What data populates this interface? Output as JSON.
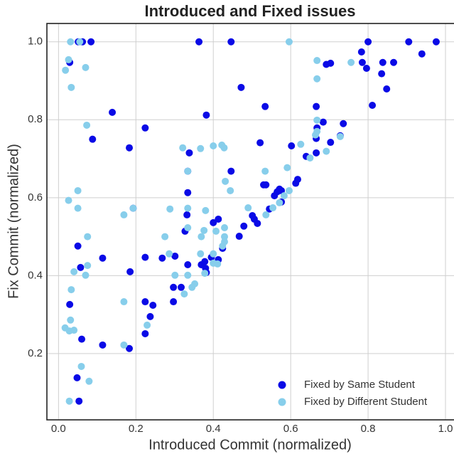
{
  "chart_data": {
    "type": "scatter",
    "title": "Introduced and Fixed issues",
    "xlabel": "Introduced Commit (normalized)",
    "ylabel": "Fix Commit (normalized)",
    "xlim": [
      -0.03,
      1.022
    ],
    "ylim": [
      0.03,
      1.047
    ],
    "xticks": [
      {
        "value": 0,
        "label": "0.0"
      },
      0.2,
      0.4,
      0.6,
      0.8,
      {
        "value": 1,
        "label": "1.0"
      }
    ],
    "yticks": [
      0.2,
      0.4,
      0.6,
      0.8,
      {
        "value": 1,
        "label": "1.0"
      }
    ],
    "grid": true,
    "legend": "lower right",
    "series": [
      {
        "name": "Fixed by Same Student",
        "color": "#0a0ae6",
        "x": [
          0.029,
          0.051,
          0.062,
          0.084,
          0.363,
          0.446,
          0.8,
          0.905,
          0.976,
          0.783,
          0.939,
          0.703,
          0.692,
          0.785,
          0.796,
          0.838,
          0.866,
          0.835,
          0.848,
          0.472,
          0.382,
          0.534,
          0.139,
          0.666,
          0.811,
          0.224,
          0.736,
          0.684,
          0.668,
          0.088,
          0.666,
          0.728,
          0.183,
          0.602,
          0.521,
          0.338,
          0.666,
          0.703,
          0.64,
          0.334,
          0.446,
          0.334,
          0.618,
          0.613,
          0.53,
          0.536,
          0.565,
          0.571,
          0.576,
          0.558,
          0.576,
          0.545,
          0.501,
          0.506,
          0.514,
          0.413,
          0.4,
          0.332,
          0.327,
          0.479,
          0.467,
          0.193,
          0.05,
          0.114,
          0.224,
          0.268,
          0.301,
          0.185,
          0.424,
          0.395,
          0.413,
          0.369,
          0.378,
          0.382,
          0.334,
          0.38,
          0.057,
          0.297,
          0.317,
          0.224,
          0.244,
          0.297,
          0.237,
          0.029,
          0.224,
          0.06,
          0.114,
          0.183,
          0.048,
          0.053
        ],
        "y": [
          0.947,
          1.0,
          1.0,
          1.0,
          1.0,
          1.0,
          1.0,
          1.0,
          1.0,
          0.974,
          0.969,
          0.945,
          0.942,
          0.947,
          0.932,
          0.947,
          0.947,
          0.918,
          0.879,
          0.883,
          0.812,
          0.834,
          0.819,
          0.834,
          0.837,
          0.779,
          0.79,
          0.794,
          0.779,
          0.75,
          0.752,
          0.759,
          0.728,
          0.733,
          0.741,
          0.715,
          0.715,
          0.742,
          0.706,
          0.668,
          0.668,
          0.613,
          0.647,
          0.637,
          0.633,
          0.633,
          0.615,
          0.622,
          0.618,
          0.605,
          0.589,
          0.571,
          0.554,
          0.545,
          0.534,
          0.545,
          0.536,
          0.556,
          0.514,
          0.527,
          0.501,
          0.573,
          0.476,
          0.445,
          0.447,
          0.445,
          0.45,
          0.41,
          0.47,
          0.447,
          0.441,
          0.428,
          0.436,
          0.408,
          0.428,
          0.419,
          0.421,
          0.37,
          0.37,
          0.333,
          0.324,
          0.333,
          0.295,
          0.326,
          0.251,
          0.237,
          0.222,
          0.213,
          0.138,
          0.078
        ]
      },
      {
        "name": "Fixed by Different Student",
        "color": "#87ceeb",
        "x": [
          0.031,
          0.055,
          0.596,
          0.026,
          0.018,
          0.07,
          0.033,
          0.668,
          0.756,
          0.668,
          0.073,
          0.668,
          0.668,
          0.664,
          0.728,
          0.626,
          0.692,
          0.422,
          0.428,
          0.4,
          0.367,
          0.321,
          0.334,
          0.534,
          0.591,
          0.65,
          0.431,
          0.444,
          0.05,
          0.026,
          0.05,
          0.193,
          0.288,
          0.334,
          0.38,
          0.169,
          0.49,
          0.554,
          0.536,
          0.571,
          0.583,
          0.596,
          0.334,
          0.429,
          0.407,
          0.376,
          0.075,
          0.275,
          0.369,
          0.429,
          0.429,
          0.424,
          0.367,
          0.4,
          0.286,
          0.075,
          0.07,
          0.04,
          0.301,
          0.334,
          0.378,
          0.411,
          0.4,
          0.033,
          0.352,
          0.345,
          0.325,
          0.169,
          0.229,
          0.031,
          0.017,
          0.028,
          0.04,
          0.169,
          0.059,
          0.079,
          0.028
        ],
        "y": [
          1.0,
          1.0,
          1.0,
          0.954,
          0.927,
          0.934,
          0.883,
          0.952,
          0.947,
          0.905,
          0.786,
          0.799,
          0.77,
          0.761,
          0.757,
          0.737,
          0.719,
          0.735,
          0.728,
          0.733,
          0.726,
          0.728,
          0.668,
          0.668,
          0.677,
          0.702,
          0.642,
          0.618,
          0.618,
          0.593,
          0.573,
          0.573,
          0.571,
          0.573,
          0.567,
          0.556,
          0.574,
          0.574,
          0.556,
          0.587,
          0.605,
          0.618,
          0.523,
          0.523,
          0.514,
          0.516,
          0.5,
          0.5,
          0.5,
          0.5,
          0.487,
          0.476,
          0.456,
          0.456,
          0.456,
          0.426,
          0.401,
          0.41,
          0.401,
          0.401,
          0.406,
          0.43,
          0.432,
          0.364,
          0.379,
          0.37,
          0.353,
          0.333,
          0.273,
          0.286,
          0.266,
          0.258,
          0.26,
          0.222,
          0.167,
          0.129,
          0.078
        ]
      }
    ]
  }
}
